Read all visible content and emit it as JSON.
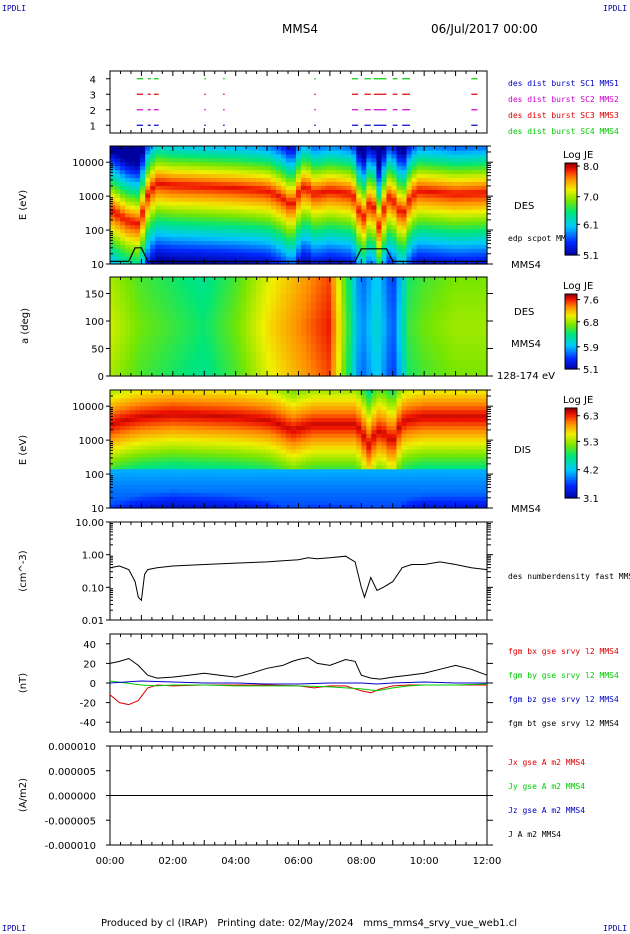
{
  "header": {
    "corner_tl": "IPDLI",
    "corner_tr": "IPDLI",
    "corner_bl": "IPDLI",
    "corner_br": "IPDLI",
    "spacecraft": "MMS4",
    "date": "06/Jul/2017 00:00"
  },
  "footer": {
    "text": "Produced by cl (IRAP)   Printing date: 02/May/2024   mms_mms4_srvy_vue_web1.cl"
  },
  "colors": {
    "red": "#e00000",
    "green": "#00cc00",
    "blue": "#0000c8",
    "magenta": "#d000d0",
    "black": "#000000"
  },
  "chart_data": [
    {
      "type": "scatter",
      "panel": "burst",
      "ylim": [
        0.5,
        4.5
      ],
      "yticks": [
        "4",
        "3",
        "2",
        "1"
      ],
      "legend": [
        {
          "label": "des dist burst SC1 MMS1",
          "color": "#0000c8"
        },
        {
          "label": "des dist burst SC2 MMS2",
          "color": "#d000d0"
        },
        {
          "label": "des dist burst SC3 MMS3",
          "color": "#e00000"
        },
        {
          "label": "des dist burst SC4 MMS4",
          "color": "#00cc00"
        }
      ],
      "series": [
        {
          "name": "des dist burst SC1 MMS1",
          "y": 1,
          "intervals": [
            [
              0.85,
              1.05
            ],
            [
              1.2,
              1.3
            ],
            [
              1.4,
              1.55
            ],
            [
              3.0,
              3.05
            ],
            [
              3.6,
              3.65
            ],
            [
              6.5,
              6.55
            ],
            [
              7.7,
              7.9
            ],
            [
              8.1,
              8.3
            ],
            [
              8.4,
              8.8
            ],
            [
              9.0,
              9.15
            ],
            [
              9.3,
              9.55
            ],
            [
              11.5,
              11.7
            ]
          ]
        },
        {
          "name": "des dist burst SC2 MMS2",
          "y": 2,
          "intervals": [
            [
              0.85,
              1.05
            ],
            [
              1.2,
              1.3
            ],
            [
              1.4,
              1.55
            ],
            [
              3.0,
              3.05
            ],
            [
              3.6,
              3.65
            ],
            [
              6.5,
              6.55
            ],
            [
              7.7,
              7.9
            ],
            [
              8.1,
              8.3
            ],
            [
              8.4,
              8.8
            ],
            [
              9.0,
              9.15
            ],
            [
              9.3,
              9.55
            ],
            [
              11.5,
              11.7
            ]
          ]
        },
        {
          "name": "des dist burst SC3 MMS3",
          "y": 3,
          "intervals": [
            [
              0.85,
              1.05
            ],
            [
              1.2,
              1.3
            ],
            [
              1.4,
              1.55
            ],
            [
              3.0,
              3.05
            ],
            [
              3.6,
              3.65
            ],
            [
              6.5,
              6.55
            ],
            [
              7.7,
              7.9
            ],
            [
              8.1,
              8.3
            ],
            [
              8.4,
              8.8
            ],
            [
              9.0,
              9.15
            ],
            [
              9.3,
              9.55
            ],
            [
              11.5,
              11.7
            ]
          ]
        },
        {
          "name": "des dist burst SC4 MMS4",
          "y": 4,
          "intervals": [
            [
              0.85,
              1.05
            ],
            [
              1.2,
              1.3
            ],
            [
              1.4,
              1.55
            ],
            [
              3.0,
              3.05
            ],
            [
              3.6,
              3.65
            ],
            [
              6.5,
              6.55
            ],
            [
              7.7,
              7.9
            ],
            [
              8.1,
              8.3
            ],
            [
              8.4,
              8.8
            ],
            [
              9.0,
              9.15
            ],
            [
              9.3,
              9.55
            ],
            [
              11.5,
              11.7
            ]
          ]
        }
      ]
    },
    {
      "type": "heatmap",
      "panel": "des-energy",
      "ylabel": "E (eV)",
      "yscale": "log",
      "ylim": [
        10,
        30000
      ],
      "yticks": [
        "10000",
        "1000",
        "100",
        "10"
      ],
      "label": "DES",
      "overlay_label": "edp scpot MMS4",
      "spacecraft_label": "MMS4",
      "colorbar": {
        "title": "Log JE",
        "ticks": [
          "8.0",
          "7.0",
          "6.1",
          "5.1"
        ],
        "range": [
          5.1,
          8.1
        ]
      },
      "peak_energy_by_hour": [
        [
          0,
          400
        ],
        [
          0.5,
          200
        ],
        [
          1,
          150
        ],
        [
          1.5,
          2500
        ],
        [
          2,
          2200
        ],
        [
          3,
          2000
        ],
        [
          4,
          1800
        ],
        [
          5,
          1500
        ],
        [
          5.8,
          500
        ],
        [
          6.2,
          2000
        ],
        [
          6.5,
          1200
        ],
        [
          7,
          1500
        ],
        [
          7.7,
          1200
        ],
        [
          8,
          100
        ],
        [
          8.3,
          700
        ],
        [
          8.6,
          50
        ],
        [
          8.9,
          1000
        ],
        [
          9.3,
          200
        ],
        [
          9.8,
          1500
        ],
        [
          11,
          1200
        ],
        [
          12,
          1300
        ]
      ]
    },
    {
      "type": "heatmap",
      "panel": "des-pitch-angle",
      "ylabel": "a (deg)",
      "ylim": [
        0,
        180
      ],
      "yticks": [
        "150",
        "100",
        "50",
        "0"
      ],
      "label": "DES",
      "spacecraft_label": "MMS4",
      "energy_band": "128-174 eV",
      "colorbar": {
        "title": "Log JE",
        "ticks": [
          "7.6",
          "6.8",
          "5.9",
          "5.1"
        ],
        "range": [
          5.1,
          7.8
        ]
      },
      "level_by_hour": [
        [
          0,
          0.65
        ],
        [
          1,
          0.55
        ],
        [
          2,
          0.5
        ],
        [
          3,
          0.45
        ],
        [
          4,
          0.55
        ],
        [
          5,
          0.7
        ],
        [
          6,
          0.8
        ],
        [
          7,
          0.9
        ],
        [
          8,
          0.2
        ],
        [
          8.5,
          0.35
        ],
        [
          9,
          0.15
        ],
        [
          9.5,
          0.5
        ],
        [
          10,
          0.55
        ],
        [
          11,
          0.6
        ],
        [
          12,
          0.6
        ]
      ]
    },
    {
      "type": "heatmap",
      "panel": "dis-energy",
      "ylabel": "E (eV)",
      "yscale": "log",
      "ylim": [
        10,
        30000
      ],
      "yticks": [
        "10000",
        "1000",
        "100",
        "10"
      ],
      "label": "DIS",
      "spacecraft_label": "MMS4",
      "colorbar": {
        "title": "Log JE",
        "ticks": [
          "6.3",
          "5.3",
          "4.2",
          "3.1"
        ],
        "range": [
          3.1,
          6.6
        ]
      },
      "peak_energy_by_hour": [
        [
          0,
          3000
        ],
        [
          1,
          5000
        ],
        [
          2,
          6000
        ],
        [
          4,
          5000
        ],
        [
          5,
          4000
        ],
        [
          5.8,
          2000
        ],
        [
          6.5,
          3000
        ],
        [
          7,
          3000
        ],
        [
          7.8,
          3000
        ],
        [
          8.2,
          600
        ],
        [
          8.6,
          2000
        ],
        [
          9,
          800
        ],
        [
          9.4,
          4000
        ],
        [
          10,
          5000
        ],
        [
          12,
          5000
        ]
      ]
    },
    {
      "type": "line",
      "panel": "density",
      "ylabel": "(cm^-3)",
      "yscale": "log",
      "ylim": [
        0.01,
        10
      ],
      "yticks": [
        "10.00",
        "1.00",
        "0.10",
        "0.01"
      ],
      "series": [
        {
          "name": "des numberdensity fast MMS4",
          "color": "#000000",
          "x": [
            0,
            0.3,
            0.6,
            0.8,
            0.9,
            1.0,
            1.1,
            1.2,
            1.5,
            2,
            3,
            4,
            5,
            5.5,
            6,
            6.3,
            6.6,
            7,
            7.5,
            7.8,
            8,
            8.1,
            8.3,
            8.5,
            8.7,
            9,
            9.3,
            9.6,
            10,
            10.5,
            11,
            11.5,
            12
          ],
          "y": [
            0.4,
            0.45,
            0.35,
            0.15,
            0.05,
            0.04,
            0.25,
            0.35,
            0.4,
            0.45,
            0.5,
            0.55,
            0.6,
            0.65,
            0.7,
            0.8,
            0.75,
            0.8,
            0.9,
            0.6,
            0.1,
            0.05,
            0.2,
            0.08,
            0.1,
            0.15,
            0.4,
            0.5,
            0.5,
            0.6,
            0.5,
            0.4,
            0.35
          ]
        }
      ]
    },
    {
      "type": "line",
      "panel": "magnetic-field",
      "ylabel": "(nT)",
      "ylim": [
        -50,
        50
      ],
      "yticks": [
        "40",
        "20",
        "0",
        "-20",
        "-40"
      ],
      "series": [
        {
          "name": "fgm bx gse srvy l2 MMS4",
          "color": "#e00000",
          "x": [
            0,
            0.3,
            0.6,
            0.9,
            1.2,
            1.5,
            2,
            3,
            4,
            5,
            6,
            6.5,
            7,
            7.5,
            8,
            8.3,
            8.6,
            9,
            9.5,
            10,
            11,
            12
          ],
          "y": [
            -12,
            -20,
            -22,
            -18,
            -5,
            -2,
            -3,
            -2,
            -2,
            -2,
            -3,
            -5,
            -3,
            -3,
            -8,
            -10,
            -6,
            -3,
            -2,
            -2,
            -2,
            -2
          ]
        },
        {
          "name": "fgm by gse srvy l2 MMS4",
          "color": "#00cc00",
          "x": [
            0,
            0.5,
            1,
            1.5,
            2,
            3,
            4,
            5,
            6,
            7,
            8,
            8.5,
            9,
            9.5,
            10,
            11,
            12
          ],
          "y": [
            2,
            0,
            -2,
            -3,
            -2,
            -2,
            -3,
            -3,
            -3,
            -4,
            -6,
            -8,
            -5,
            -3,
            -2,
            -2,
            -1
          ]
        },
        {
          "name": "fgm bz gse srvy l2 MMS4",
          "color": "#0000c8",
          "x": [
            0,
            0.5,
            1,
            2,
            3,
            4,
            5,
            6,
            7,
            8,
            8.5,
            9,
            10,
            11,
            12
          ],
          "y": [
            0,
            1,
            2,
            1,
            0,
            0,
            -1,
            -1,
            0,
            0,
            -1,
            0,
            1,
            0,
            0
          ]
        },
        {
          "name": "fgm bt gse srvy l2 MMS4",
          "color": "#000000",
          "x": [
            0,
            0.3,
            0.6,
            0.9,
            1.2,
            1.5,
            2,
            2.5,
            3,
            3.5,
            4,
            4.5,
            5,
            5.5,
            5.8,
            6,
            6.3,
            6.6,
            7,
            7.5,
            7.8,
            8,
            8.3,
            8.6,
            9,
            9.5,
            10,
            10.5,
            11,
            11.5,
            12
          ],
          "y": [
            20,
            22,
            25,
            18,
            8,
            5,
            6,
            8,
            10,
            8,
            6,
            10,
            15,
            18,
            22,
            24,
            26,
            20,
            18,
            24,
            22,
            8,
            5,
            4,
            6,
            8,
            10,
            14,
            18,
            14,
            8
          ]
        }
      ]
    },
    {
      "type": "line",
      "panel": "current-density",
      "ylabel": "(A/m2)",
      "ylim": [
        -1e-05,
        1e-05
      ],
      "yticks": [
        "0.000010",
        "0.000005",
        "0.000000",
        "-0.000005",
        "-0.000010"
      ],
      "series": [
        {
          "name": "Jx gse A m2 MMS4",
          "color": "#e00000",
          "x": [
            0,
            12
          ],
          "y": [
            0,
            0
          ]
        },
        {
          "name": "Jy gse A m2 MMS4",
          "color": "#00cc00",
          "x": [
            0,
            12
          ],
          "y": [
            0,
            0
          ]
        },
        {
          "name": "Jz gse A m2 MMS4",
          "color": "#0000c8",
          "x": [
            0,
            12
          ],
          "y": [
            0,
            0
          ]
        },
        {
          "name": "J A m2 MMS4",
          "color": "#000000",
          "x": [
            0,
            12
          ],
          "y": [
            0,
            0
          ]
        }
      ]
    }
  ],
  "time_axis": {
    "ticks": [
      "00:00",
      "02:00",
      "04:00",
      "06:00",
      "08:00",
      "10:00",
      "12:00"
    ],
    "range_hours": [
      0,
      12
    ]
  }
}
